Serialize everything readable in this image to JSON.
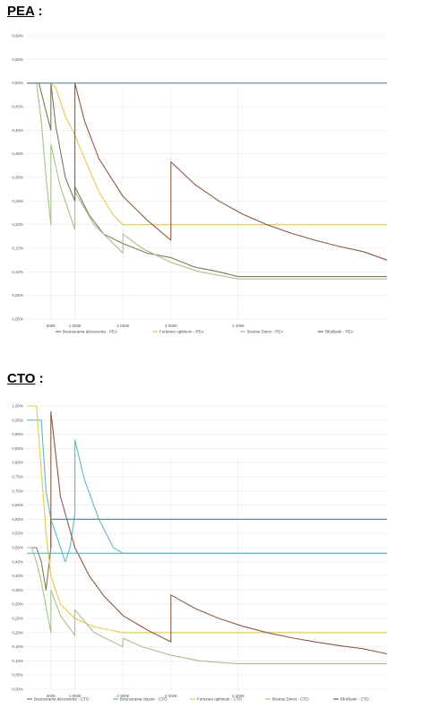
{
  "sections": [
    {
      "title": "PEA",
      "suffix": " :"
    },
    {
      "title": "CTO",
      "suffix": " :"
    }
  ],
  "chart_data": [
    {
      "type": "line",
      "title": "",
      "xlabel": "",
      "ylabel": "",
      "xlim": [
        0,
        7500
      ],
      "ylim": [
        0,
        0.6
      ],
      "y_ticks": [
        "0,00%",
        "0,05%",
        "0,10%",
        "0,15%",
        "0,20%",
        "0,25%",
        "0,30%",
        "0,35%",
        "0,40%",
        "0,45%",
        "0,50%",
        "0,55%",
        "0,60%"
      ],
      "x_ticks": [
        {
          "value": 500,
          "label": "500€"
        },
        {
          "value": 1000,
          "label": "1 000€"
        },
        {
          "value": 2000,
          "label": "2 000€"
        },
        {
          "value": 3000,
          "label": "3 000€"
        },
        {
          "value": 4400,
          "label": "4 400€"
        }
      ],
      "grid": true,
      "legend": "bottom",
      "series": [
        {
          "name": "Boursorama découverte - PEA",
          "color": "#7b7b5a",
          "points": [
            [
              0,
              0.5
            ],
            [
              250,
              0.5
            ],
            [
              500,
              0.4
            ],
            [
              500,
              0.5
            ],
            [
              600,
              0.41
            ],
            [
              800,
              0.3
            ],
            [
              1000,
              0.25
            ],
            [
              1000,
              0.28
            ],
            [
              1300,
              0.22
            ],
            [
              1600,
              0.18
            ],
            [
              2000,
              0.16
            ],
            [
              2500,
              0.14
            ],
            [
              3000,
              0.13
            ],
            [
              3500,
              0.11
            ],
            [
              4000,
              0.1
            ],
            [
              4400,
              0.09
            ],
            [
              7500,
              0.09
            ]
          ]
        },
        {
          "name": "Fortuneo optimum - PEA",
          "color": "#e6c84a",
          "points": [
            [
              0,
              0.5
            ],
            [
              500,
              0.5
            ],
            [
              600,
              0.49
            ],
            [
              800,
              0.43
            ],
            [
              1000,
              0.39
            ],
            [
              1200,
              0.34
            ],
            [
              1500,
              0.27
            ],
            [
              1800,
              0.22
            ],
            [
              2000,
              0.2
            ],
            [
              7500,
              0.2
            ]
          ]
        },
        {
          "name": "Bourse Direct - PEA",
          "color": "#a8c08a",
          "points": [
            [
              0,
              0.5
            ],
            [
              200,
              0.5
            ],
            [
              300,
              0.42
            ],
            [
              400,
              0.3
            ],
            [
              500,
              0.2
            ],
            [
              500,
              0.37
            ],
            [
              700,
              0.28
            ],
            [
              900,
              0.22
            ],
            [
              1000,
              0.19
            ],
            [
              1000,
              0.27
            ],
            [
              1400,
              0.2
            ],
            [
              2000,
              0.14
            ],
            [
              2000,
              0.18
            ],
            [
              2400,
              0.15
            ],
            [
              3000,
              0.12
            ],
            [
              3600,
              0.1
            ],
            [
              4400,
              0.085
            ],
            [
              7500,
              0.085
            ]
          ]
        },
        {
          "name": "BforBank - PEA",
          "color": "#8a5a44",
          "points": [
            [
              1000,
              0.25
            ],
            [
              1000,
              0.5
            ],
            [
              1200,
              0.42
            ],
            [
              1500,
              0.34
            ],
            [
              2000,
              0.26
            ],
            [
              2500,
              0.21
            ],
            [
              3000,
              0.167
            ],
            [
              3000,
              0.333
            ],
            [
              3500,
              0.285
            ],
            [
              4000,
              0.25
            ],
            [
              4500,
              0.222
            ],
            [
              5000,
              0.2
            ],
            [
              5500,
              0.182
            ],
            [
              6000,
              0.167
            ],
            [
              6500,
              0.154
            ],
            [
              7000,
              0.143
            ],
            [
              7500,
              0.125
            ]
          ]
        },
        {
          "name": "",
          "color": "#5d8aa8",
          "points": [
            [
              0,
              0.5
            ],
            [
              7500,
              0.5
            ]
          ]
        }
      ],
      "legend_entries": [
        "Boursorama découverte - PEA",
        "Fortuneo optimum - PEA",
        "Bourse Direct - PEA",
        "BforBank - PEA"
      ]
    },
    {
      "type": "line",
      "title": "",
      "xlabel": "",
      "ylabel": "",
      "xlim": [
        0,
        7500
      ],
      "ylim": [
        0,
        1.0
      ],
      "y_ticks": [
        "0,00%",
        "0,05%",
        "0,10%",
        "0,15%",
        "0,20%",
        "0,25%",
        "0,30%",
        "0,35%",
        "0,40%",
        "0,45%",
        "0,50%",
        "0,55%",
        "0,60%",
        "0,65%",
        "0,70%",
        "0,75%",
        "0,80%",
        "0,85%",
        "0,90%",
        "0,95%",
        "1,00%"
      ],
      "x_ticks": [
        {
          "value": 500,
          "label": "500€"
        },
        {
          "value": 1000,
          "label": "1 000€"
        },
        {
          "value": 2000,
          "label": "2 000€"
        },
        {
          "value": 3000,
          "label": "3 000€"
        },
        {
          "value": 4400,
          "label": "4 400€"
        }
      ],
      "grid": true,
      "legend": "bottom",
      "series": [
        {
          "name": "Boursorama découverte - CTO",
          "color": "#7b7b5a",
          "points": [
            [
              0,
              0.5
            ],
            [
              200,
              0.5
            ],
            [
              300,
              0.45
            ],
            [
              400,
              0.35
            ],
            [
              500,
              0.5
            ],
            [
              500,
              0.6
            ],
            [
              7500,
              0.6
            ]
          ]
        },
        {
          "name": "Boursorama classic - CTO",
          "color": "#5fb8c8",
          "points": [
            [
              0,
              0.95
            ],
            [
              300,
              0.95
            ],
            [
              400,
              0.7
            ],
            [
              500,
              0.6
            ],
            [
              600,
              0.55
            ],
            [
              800,
              0.45
            ],
            [
              900,
              0.5
            ],
            [
              1000,
              0.62
            ],
            [
              1000,
              0.88
            ],
            [
              1200,
              0.74
            ],
            [
              1500,
              0.6
            ],
            [
              1800,
              0.5
            ],
            [
              2000,
              0.48
            ],
            [
              7500,
              0.48
            ]
          ]
        },
        {
          "name": "Fortuneo optimum - CTO",
          "color": "#e6c84a",
          "points": [
            [
              0,
              1.0
            ],
            [
              200,
              1.0
            ],
            [
              400,
              0.55
            ],
            [
              500,
              0.4
            ],
            [
              700,
              0.3
            ],
            [
              1000,
              0.25
            ],
            [
              1400,
              0.22
            ],
            [
              2000,
              0.2
            ],
            [
              7500,
              0.2
            ]
          ]
        },
        {
          "name": "Bourse Direct - CTO",
          "color": "#a8c08a",
          "points": [
            [
              0,
              0.5
            ],
            [
              100,
              0.5
            ],
            [
              200,
              0.45
            ],
            [
              300,
              0.38
            ],
            [
              500,
              0.2
            ],
            [
              500,
              0.35
            ],
            [
              700,
              0.26
            ],
            [
              1000,
              0.19
            ],
            [
              1000,
              0.28
            ],
            [
              1400,
              0.2
            ],
            [
              2000,
              0.15
            ],
            [
              2000,
              0.18
            ],
            [
              2400,
              0.15
            ],
            [
              3000,
              0.12
            ],
            [
              3600,
              0.1
            ],
            [
              4400,
              0.09
            ],
            [
              7500,
              0.09
            ]
          ]
        },
        {
          "name": "BforBank - CTO",
          "color": "#8a5a44",
          "points": [
            [
              500,
              0.5
            ],
            [
              500,
              0.98
            ],
            [
              700,
              0.68
            ],
            [
              1000,
              0.5
            ],
            [
              1300,
              0.4
            ],
            [
              1600,
              0.33
            ],
            [
              2000,
              0.26
            ],
            [
              2500,
              0.21
            ],
            [
              3000,
              0.167
            ],
            [
              3000,
              0.333
            ],
            [
              3500,
              0.285
            ],
            [
              4000,
              0.25
            ],
            [
              4500,
              0.222
            ],
            [
              5000,
              0.2
            ],
            [
              5500,
              0.182
            ],
            [
              6000,
              0.167
            ],
            [
              6500,
              0.154
            ],
            [
              7000,
              0.143
            ],
            [
              7500,
              0.125
            ]
          ]
        },
        {
          "name": "",
          "color": "#5d8aa8",
          "points": [
            [
              500,
              0.6
            ],
            [
              7500,
              0.6
            ]
          ]
        },
        {
          "name": "",
          "color": "#5fb8c8",
          "points": [
            [
              0,
              0.48
            ],
            [
              7500,
              0.48
            ]
          ]
        }
      ],
      "legend_entries": [
        "Boursorama découverte - CTO",
        "Boursorama classic - CTO",
        "Fortuneo optimum - CTO",
        "Bourse Direct - CTO",
        "BforBank - CTO"
      ]
    }
  ]
}
